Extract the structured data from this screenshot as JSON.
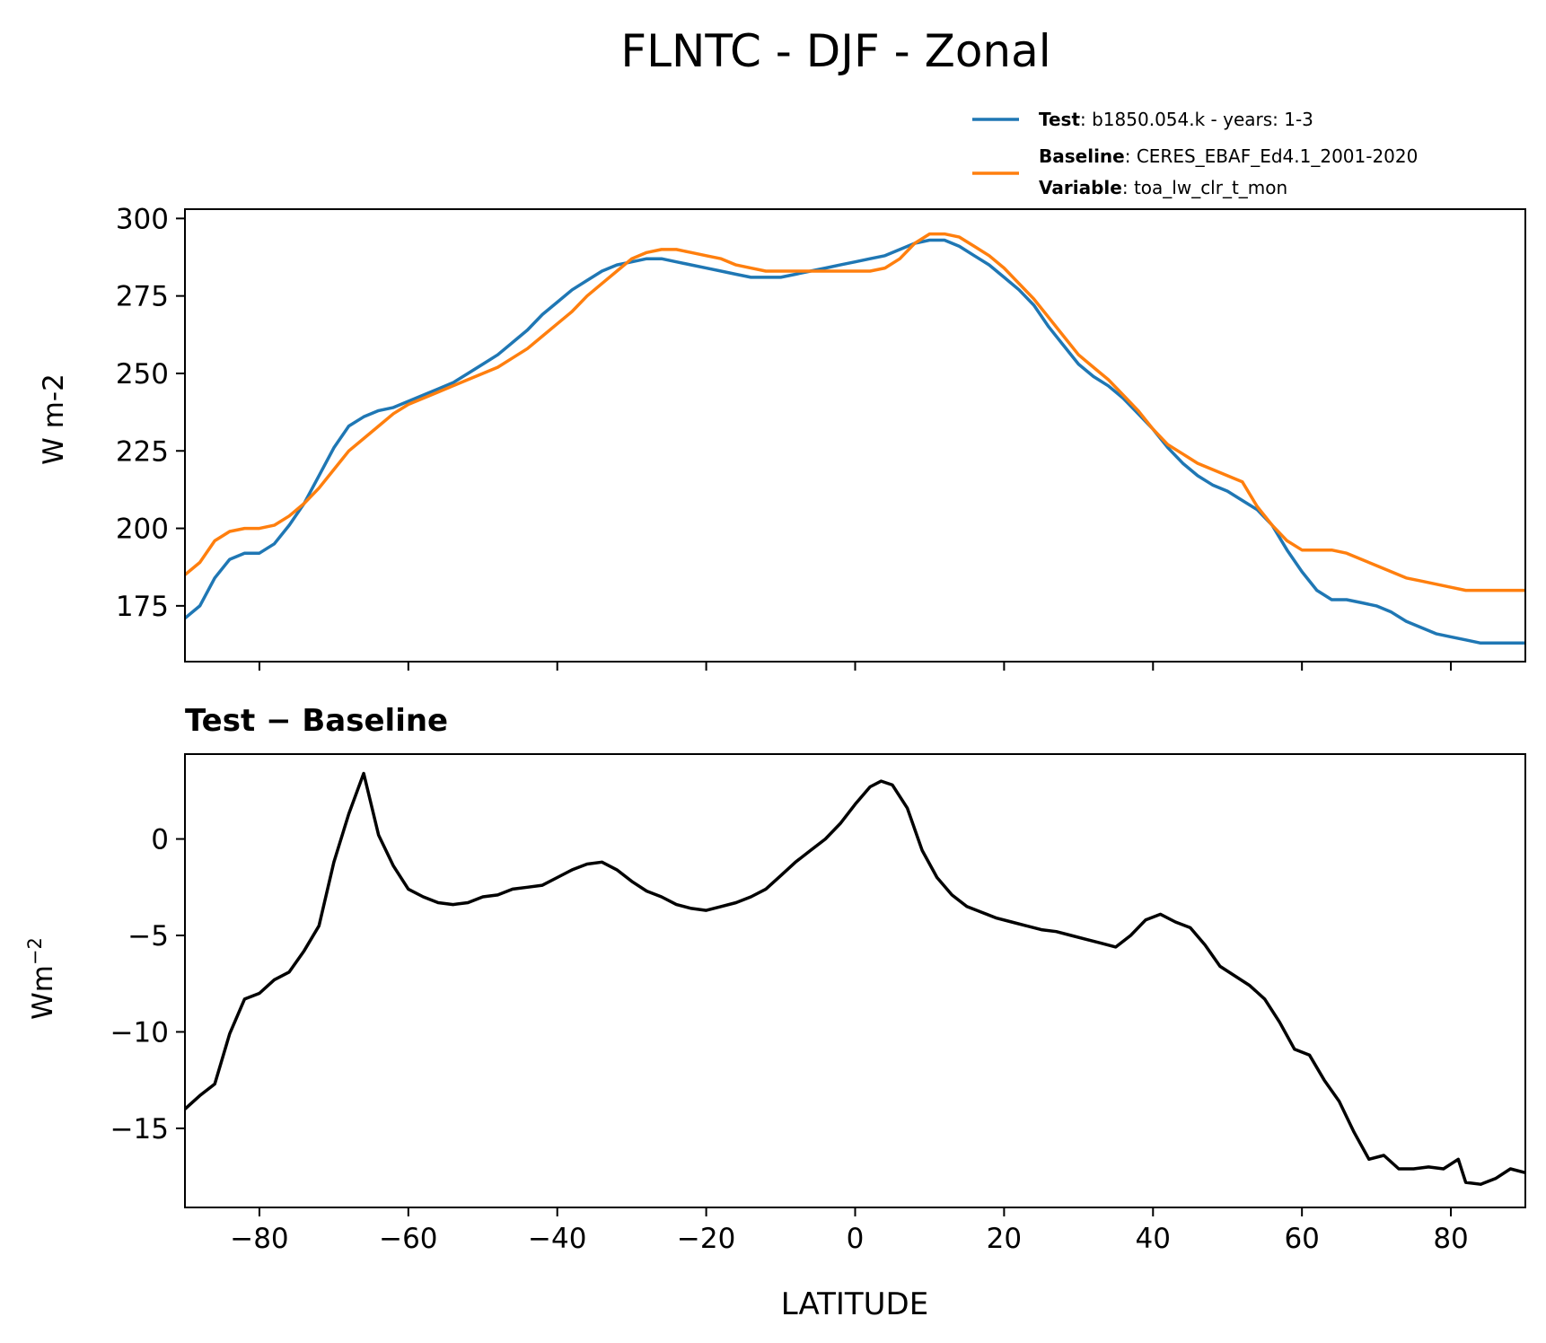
{
  "figure": {
    "title": "FLNTC - DJF - Zonal"
  },
  "legend": {
    "entries": [
      {
        "bold": "Test",
        "text": ": b1850.054.k - years: 1-3",
        "color": "#1f77b4"
      },
      {
        "bold": "Baseline",
        "text": ": CERES_EBAF_Ed4.1_2001-2020",
        "color": "#ff7f0e"
      },
      {
        "bold": "Variable",
        "text": ": toa_lw_clr_t_mon"
      }
    ]
  },
  "chart_data": [
    {
      "type": "line",
      "title": "",
      "ylabel": "W m-2",
      "xlabel": "",
      "xlim": [
        -90,
        90
      ],
      "ylim": [
        157,
        303
      ],
      "xticks": [
        -80,
        -60,
        -40,
        -20,
        0,
        20,
        40,
        60,
        80
      ],
      "yticks": [
        175,
        200,
        225,
        250,
        275,
        300
      ],
      "ytick_labels": [
        "175",
        "200",
        "225",
        "250",
        "275",
        "300"
      ],
      "grid": false,
      "legend_position": "above-right",
      "x": [
        -90,
        -88,
        -86,
        -84,
        -82,
        -80,
        -78,
        -76,
        -74,
        -72,
        -70,
        -68,
        -66,
        -64,
        -62,
        -60,
        -58,
        -56,
        -54,
        -52,
        -50,
        -48,
        -46,
        -44,
        -42,
        -40,
        -38,
        -36,
        -34,
        -32,
        -30,
        -28,
        -26,
        -24,
        -22,
        -20,
        -18,
        -16,
        -14,
        -12,
        -10,
        -8,
        -6,
        -4,
        -2,
        0,
        2,
        4,
        6,
        8,
        10,
        12,
        14,
        16,
        18,
        20,
        22,
        24,
        26,
        28,
        30,
        32,
        34,
        36,
        38,
        40,
        42,
        44,
        46,
        48,
        50,
        52,
        54,
        56,
        58,
        60,
        62,
        64,
        66,
        68,
        70,
        72,
        74,
        76,
        78,
        80,
        82,
        84,
        86,
        88,
        90
      ],
      "series": [
        {
          "name": "Test",
          "color": "#1f77b4",
          "values": [
            171,
            175,
            184,
            190,
            192,
            192,
            195,
            201,
            208,
            217,
            226,
            233,
            236,
            238,
            239,
            241,
            243,
            245,
            247,
            250,
            253,
            256,
            260,
            264,
            269,
            273,
            277,
            280,
            283,
            285,
            286,
            287,
            287,
            286,
            285,
            284,
            283,
            282,
            281,
            281,
            281,
            282,
            283,
            284,
            285,
            286,
            287,
            288,
            290,
            292,
            293,
            293,
            291,
            288,
            285,
            281,
            277,
            272,
            265,
            259,
            253,
            249,
            246,
            242,
            237,
            232,
            226,
            221,
            217,
            214,
            212,
            209,
            206,
            201,
            193,
            186,
            180,
            177,
            177,
            176,
            175,
            173,
            170,
            168,
            166,
            165,
            164,
            163,
            163,
            163,
            163
          ]
        },
        {
          "name": "Baseline",
          "color": "#ff7f0e",
          "values": [
            185,
            189,
            196,
            199,
            200,
            200,
            201,
            204,
            208,
            213,
            219,
            225,
            229,
            233,
            237,
            240,
            242,
            244,
            246,
            248,
            250,
            252,
            255,
            258,
            262,
            266,
            270,
            275,
            279,
            283,
            287,
            289,
            290,
            290,
            289,
            288,
            287,
            285,
            284,
            283,
            283,
            283,
            283,
            283,
            283,
            283,
            283,
            284,
            287,
            292,
            295,
            295,
            294,
            291,
            288,
            284,
            279,
            274,
            268,
            262,
            256,
            252,
            248,
            243,
            238,
            232,
            227,
            224,
            221,
            219,
            217,
            215,
            207,
            201,
            196,
            193,
            193,
            193,
            192,
            190,
            188,
            186,
            184,
            183,
            182,
            181,
            180,
            180,
            180,
            180,
            180
          ]
        }
      ]
    },
    {
      "type": "line",
      "title": "Test − Baseline",
      "ylabel": "Wm⁻²",
      "xlabel": "LATITUDE",
      "xlim": [
        -90,
        90
      ],
      "ylim": [
        -19.1,
        4.4
      ],
      "xticks": [
        -80,
        -60,
        -40,
        -20,
        0,
        20,
        40,
        60,
        80
      ],
      "xtick_labels": [
        "−80",
        "−60",
        "−40",
        "−20",
        "0",
        "20",
        "40",
        "60",
        "80"
      ],
      "yticks": [
        -15,
        -10,
        -5,
        0
      ],
      "ytick_labels": [
        "−15",
        "−10",
        "−5",
        "0"
      ],
      "grid": false,
      "series": [
        {
          "color": "#000000",
          "x": [
            -90,
            -88,
            -86,
            -84,
            -82,
            -80,
            -78,
            -76,
            -74,
            -72,
            -70,
            -68,
            -66,
            -64,
            -62,
            -60,
            -58,
            -56,
            -54,
            -52,
            -50,
            -48,
            -46,
            -44,
            -42,
            -40,
            -38,
            -36,
            -34,
            -32,
            -30,
            -28,
            -26,
            -24,
            -22,
            -20,
            -18,
            -16,
            -14,
            -12,
            -10,
            -8,
            -6,
            -4,
            -2,
            0,
            2,
            3.5,
            5,
            7,
            9,
            11,
            13,
            15,
            17,
            19,
            21,
            23,
            25,
            27,
            29,
            31,
            33,
            35,
            37,
            39,
            41,
            43,
            45,
            47,
            49,
            51,
            53,
            55,
            57,
            59,
            61,
            63,
            65,
            67,
            69,
            71,
            73,
            75,
            77,
            79,
            81,
            82,
            84,
            86,
            88,
            90
          ],
          "values": [
            -14.0,
            -13.3,
            -12.7,
            -10.1,
            -8.3,
            -8.0,
            -7.3,
            -6.9,
            -5.8,
            -4.5,
            -1.2,
            1.3,
            3.4,
            0.2,
            -1.4,
            -2.6,
            -3.0,
            -3.3,
            -3.4,
            -3.3,
            -3.0,
            -2.9,
            -2.6,
            -2.5,
            -2.4,
            -2.0,
            -1.6,
            -1.3,
            -1.2,
            -1.6,
            -2.2,
            -2.7,
            -3.0,
            -3.4,
            -3.6,
            -3.7,
            -3.5,
            -3.3,
            -3.0,
            -2.6,
            -1.9,
            -1.2,
            -0.6,
            0.0,
            0.8,
            1.8,
            2.7,
            3.0,
            2.8,
            1.6,
            -0.6,
            -2.0,
            -2.9,
            -3.5,
            -3.8,
            -4.1,
            -4.3,
            -4.5,
            -4.7,
            -4.8,
            -5.0,
            -5.2,
            -5.4,
            -5.6,
            -5.0,
            -4.2,
            -3.9,
            -4.3,
            -4.6,
            -5.5,
            -6.6,
            -7.1,
            -7.6,
            -8.3,
            -9.5,
            -10.9,
            -11.2,
            -12.5,
            -13.6,
            -15.2,
            -16.6,
            -16.4,
            -17.1,
            -17.1,
            -17.0,
            -17.1,
            -16.6,
            -17.8,
            -17.9,
            -17.6,
            -17.1,
            -17.3
          ]
        }
      ]
    }
  ]
}
